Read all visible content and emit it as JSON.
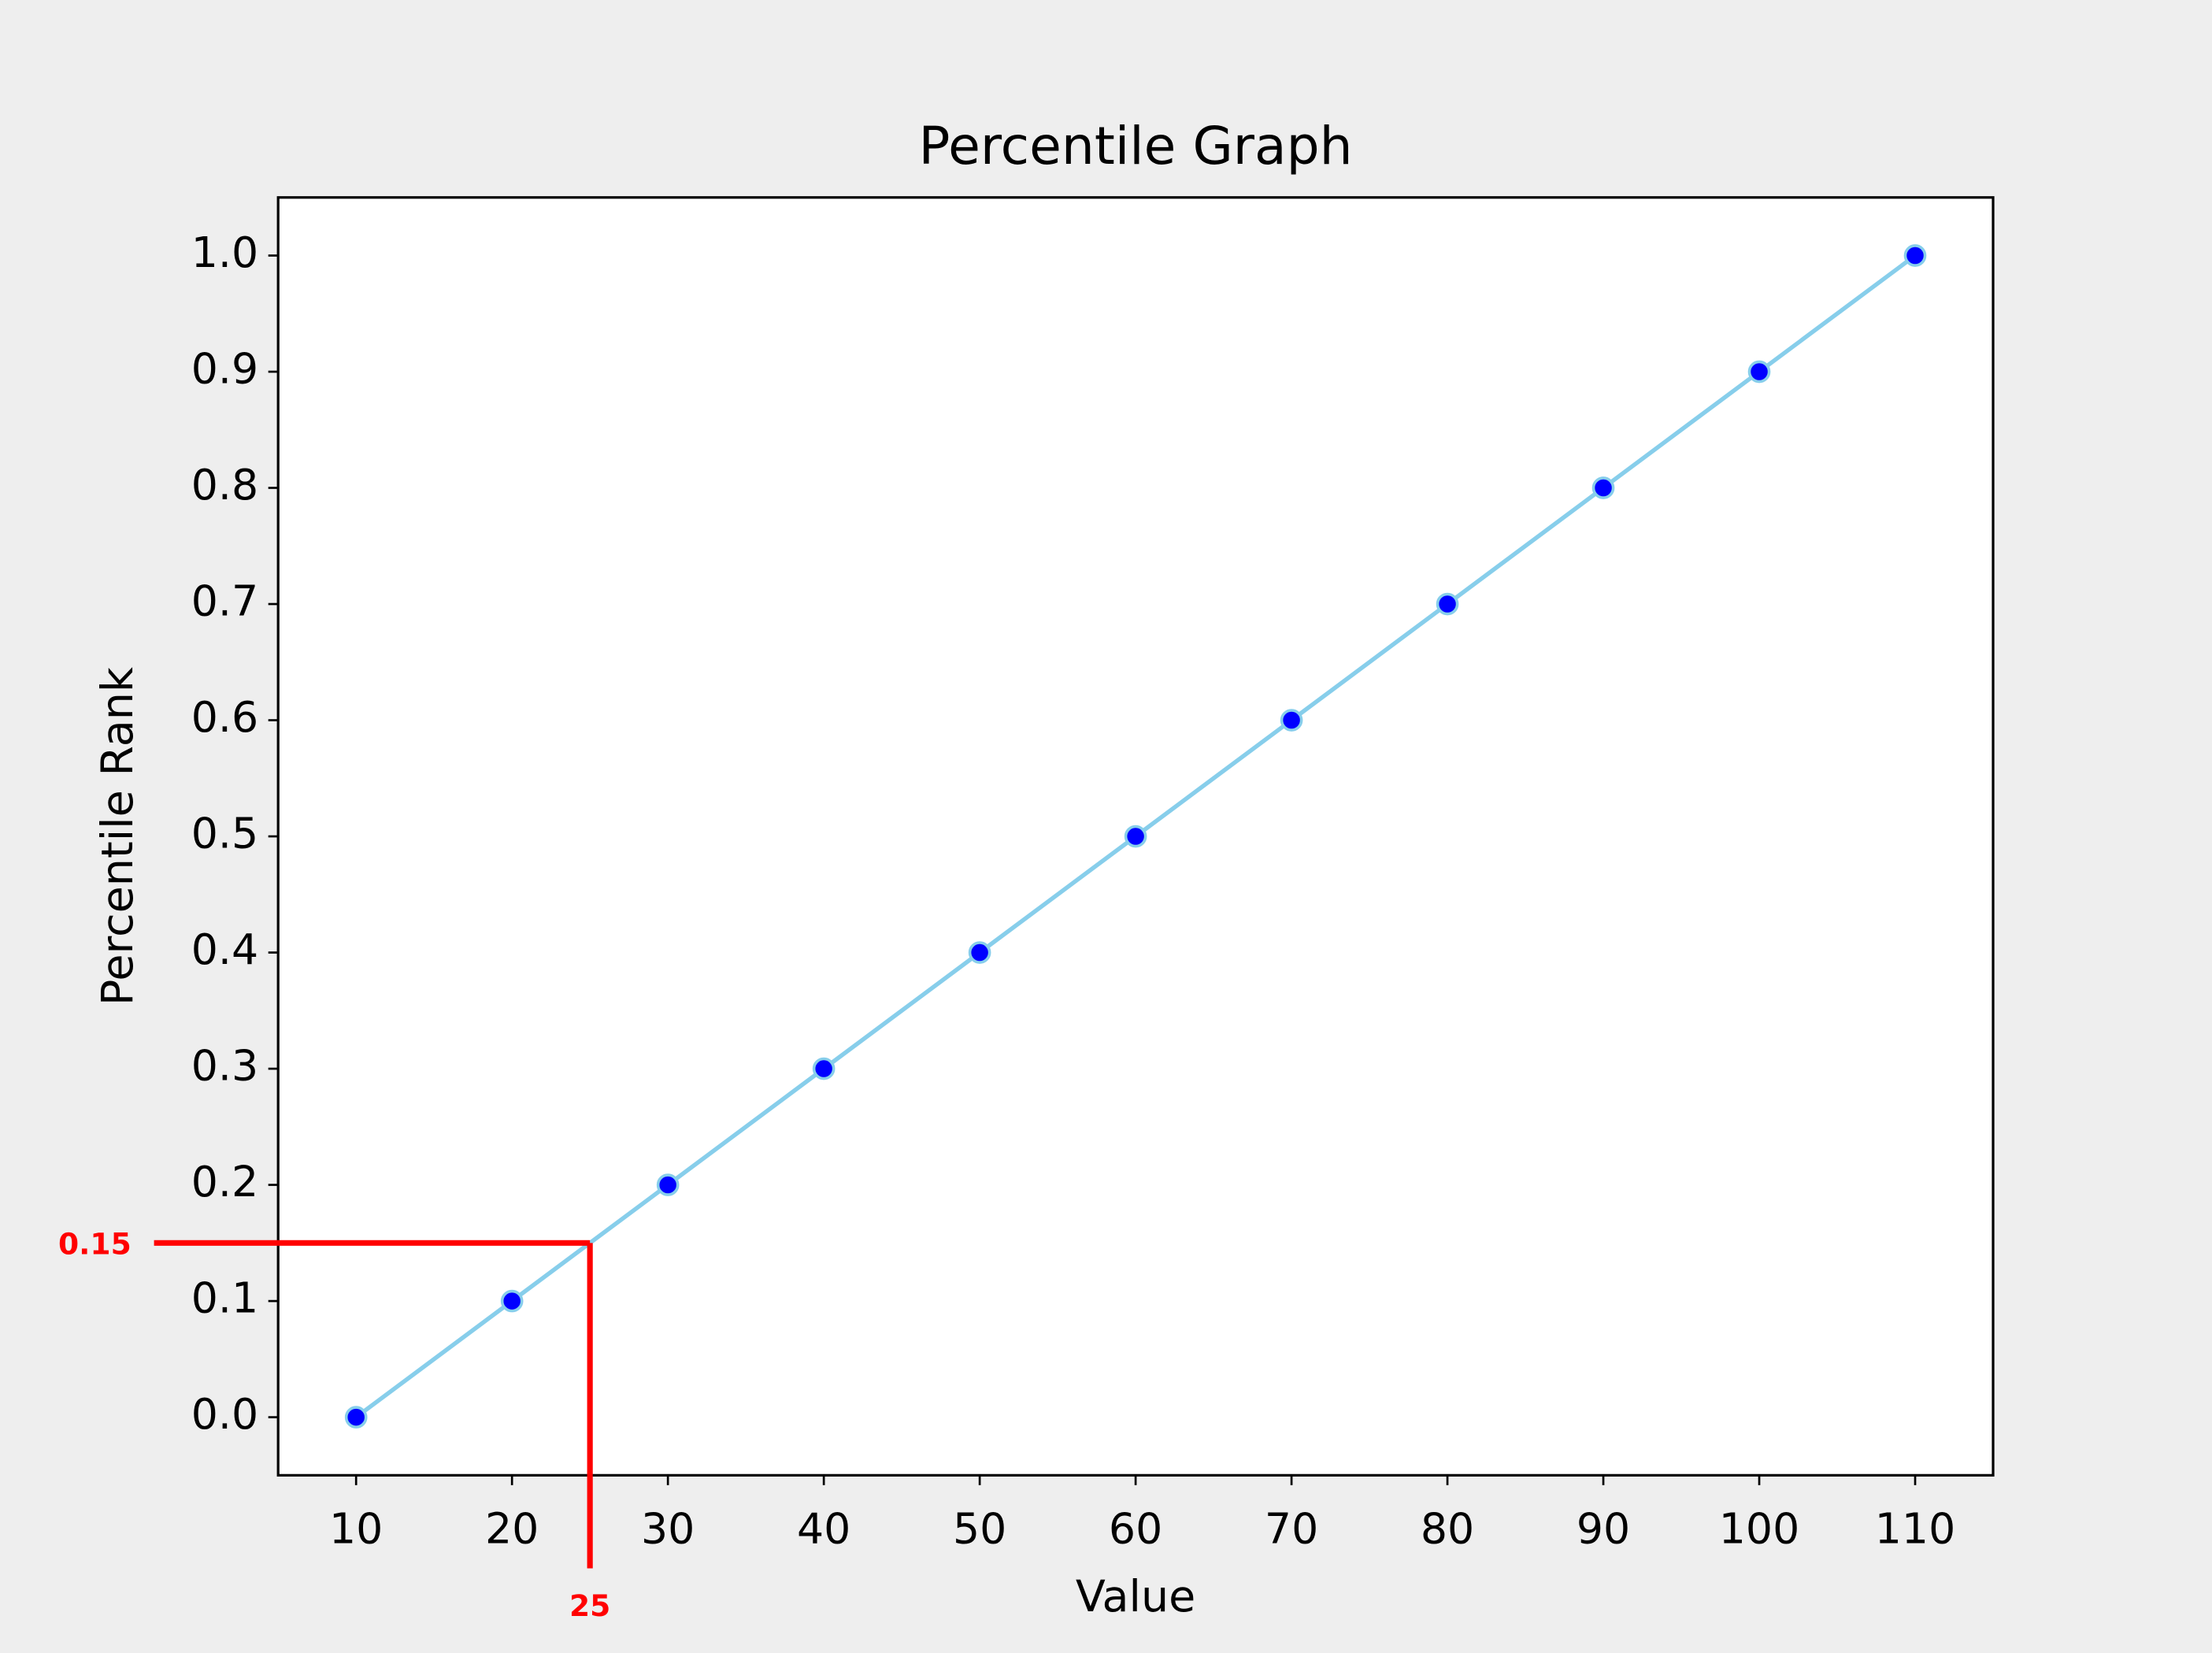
{
  "chart_data": {
    "type": "line",
    "title": "Percentile Graph",
    "xlabel": "Value",
    "ylabel": "Percentile Rank",
    "x": [
      10,
      20,
      30,
      40,
      50,
      60,
      70,
      80,
      90,
      100,
      110
    ],
    "series": [
      {
        "color": "#87ceeb",
        "marker_color": "#0000ff",
        "values": [
          0,
          0.1,
          0.2,
          0.3,
          0.4,
          0.5,
          0.6,
          0.7,
          0.8,
          0.9,
          1
        ]
      }
    ],
    "xlim": [
      5,
      115
    ],
    "ylim": [
      -0.05,
      1.05
    ],
    "xticks": [
      10,
      20,
      30,
      40,
      50,
      60,
      70,
      80,
      90,
      100,
      110
    ],
    "yticks": [
      {
        "value": 0,
        "label": "0.0"
      },
      0.1,
      0.2,
      0.3,
      0.4,
      0.5,
      0.6,
      0.7,
      0.8,
      0.9,
      {
        "value": 1,
        "label": "1.0"
      }
    ],
    "grid": false,
    "annotation": {
      "x": 25,
      "y": 0.15,
      "color": "#ff0000"
    }
  }
}
